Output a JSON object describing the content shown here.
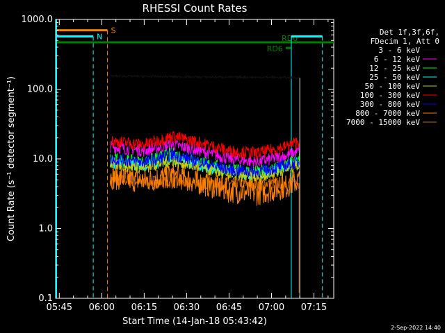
{
  "chart_data": {
    "type": "line",
    "title": "RHESSI Count Rates",
    "xlabel": "Start Time (14-Jan-18 05:43:42)",
    "ylabel": "Count Rate (s⁻¹ detector segment⁻¹)",
    "yscale": "log",
    "ylim": [
      0.1,
      1000.0
    ],
    "xlim": [
      "05:43:42",
      "07:22:00"
    ],
    "x_ticks": [
      "05:45",
      "06:00",
      "06:15",
      "06:30",
      "06:45",
      "07:00",
      "07:15"
    ],
    "y_ticks": [
      "0.1",
      "1.0",
      "10.0",
      "100.0",
      "1000.0"
    ],
    "grid": false,
    "legend_position": "right",
    "legend_header": [
      "Det 1f,3f,6f,",
      "FDecim 1, Att 0"
    ],
    "footer_date": "2-Sep-2022 14:40",
    "background": "#000000",
    "series": [
      {
        "name": "3 - 6 keV",
        "color": "#000000",
        "x": [
          "06:03",
          "06:30",
          "07:00",
          "07:10"
        ],
        "values": [
          155,
          150,
          148,
          145
        ]
      },
      {
        "name": "6 - 12 keV",
        "color": "#ff00ff",
        "x": [
          "06:03",
          "06:15",
          "06:25",
          "06:35",
          "06:45",
          "06:55",
          "07:05",
          "07:10"
        ],
        "values": [
          15,
          13,
          16,
          13,
          10,
          9,
          11,
          13
        ]
      },
      {
        "name": "12 - 25 keV",
        "color": "#00ff00",
        "x": [
          "06:03",
          "06:15",
          "06:25",
          "06:35",
          "06:45",
          "06:55",
          "07:05",
          "07:10"
        ],
        "values": [
          10,
          9,
          12,
          9,
          7,
          6.5,
          8,
          10
        ]
      },
      {
        "name": "25 - 50 keV",
        "color": "#00ffff",
        "x": [
          "06:03",
          "06:15",
          "06:25",
          "06:35",
          "06:45",
          "06:55",
          "07:05",
          "07:10"
        ],
        "values": [
          9,
          8,
          10,
          8,
          6.5,
          6,
          7.5,
          9
        ]
      },
      {
        "name": "50 - 100 keV",
        "color": "#cccc00",
        "x": [
          "06:03",
          "06:15",
          "06:25",
          "06:35",
          "06:45",
          "06:55",
          "07:05",
          "07:10"
        ],
        "values": [
          8.5,
          7.5,
          9.5,
          7.5,
          6,
          5.5,
          7,
          8.5
        ]
      },
      {
        "name": "100 - 300 keV",
        "color": "#ff0000",
        "x": [
          "06:03",
          "06:15",
          "06:25",
          "06:35",
          "06:45",
          "06:55",
          "07:05",
          "07:10"
        ],
        "values": [
          18,
          16,
          21,
          17,
          13,
          12,
          15,
          18
        ]
      },
      {
        "name": "300 - 800 keV",
        "color": "#0000ff",
        "x": [
          "06:03",
          "06:15",
          "06:25",
          "06:35",
          "06:45",
          "06:55",
          "07:05",
          "07:10"
        ],
        "values": [
          10,
          9,
          11.5,
          9,
          7,
          6.5,
          8,
          9
        ]
      },
      {
        "name": "800 - 7000 keV",
        "color": "#ff8000",
        "x": [
          "06:03",
          "06:15",
          "06:25",
          "06:35",
          "06:45",
          "06:55",
          "07:05",
          "07:10"
        ],
        "values": [
          5.5,
          4.8,
          5.8,
          4.5,
          3.5,
          3.2,
          4,
          5
        ]
      },
      {
        "name": "7000 - 15000 keV",
        "color": "#cc6600",
        "x": [
          "06:03",
          "06:30",
          "07:10"
        ],
        "values": [
          5,
          4.5,
          4.5
        ]
      }
    ],
    "annotations": [
      {
        "label": "S",
        "color": "#ff8000",
        "x_start": "05:43:42",
        "x_end": "06:02",
        "y": 700,
        "vertical_at": "06:02"
      },
      {
        "label": "N",
        "color": "#00ffff",
        "x_start": "05:43:42",
        "x_end": "05:57",
        "y": 570,
        "vertical_at": "05:57"
      },
      {
        "label": "RD0",
        "color": "#008000",
        "x_start": "05:43:42",
        "x_end": "07:22:00",
        "y": 470
      },
      {
        "label": "RD6",
        "color": "#008000",
        "x_start": "07:05",
        "x_end": "07:07",
        "y": 390
      },
      {
        "label": "",
        "color": "#00ffff",
        "x_start": "07:07",
        "x_end": "07:18",
        "y": 570,
        "vertical_at": "07:07",
        "vertical_dashed_at": "07:18"
      }
    ]
  }
}
